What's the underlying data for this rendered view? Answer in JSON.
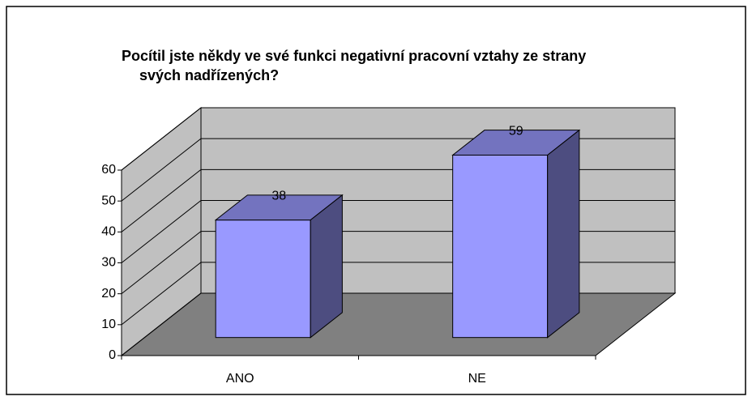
{
  "chart_data": {
    "type": "bar3d",
    "title": [
      "Pocítil jste někdy ve své funkci negativní pracovní vztahy ze strany",
      "svých nadřízených?"
    ],
    "categories": [
      "ANO",
      "NE"
    ],
    "values": [
      38,
      59
    ],
    "color": "#9999ff",
    "ylim": [
      0,
      60
    ],
    "yticks": [
      0,
      10,
      20,
      30,
      40,
      50,
      60
    ],
    "grid": true
  }
}
